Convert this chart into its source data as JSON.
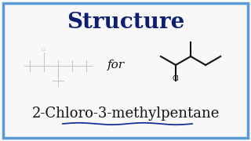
{
  "title": "Structure",
  "title_fontsize": 20,
  "title_color": "#0d1f6e",
  "title_fontweight": "bold",
  "for_text": "for",
  "for_fontsize": 11,
  "compound_name": "2-Chloro-3-methylpentane",
  "compound_fontsize": 13,
  "compound_color": "#111111",
  "background_color": "#f8f8f8",
  "border_color": "#5b9bd5",
  "border_linewidth": 2.5,
  "underline_color": "#1a2e99",
  "ghost_color": "#c8c8c8",
  "struct_color": "#111111",
  "cl_label_color": "#111111",
  "ghost_cl_color": "#bbbbbb",
  "ghost_lw": 0.8,
  "struct_lw": 1.5
}
